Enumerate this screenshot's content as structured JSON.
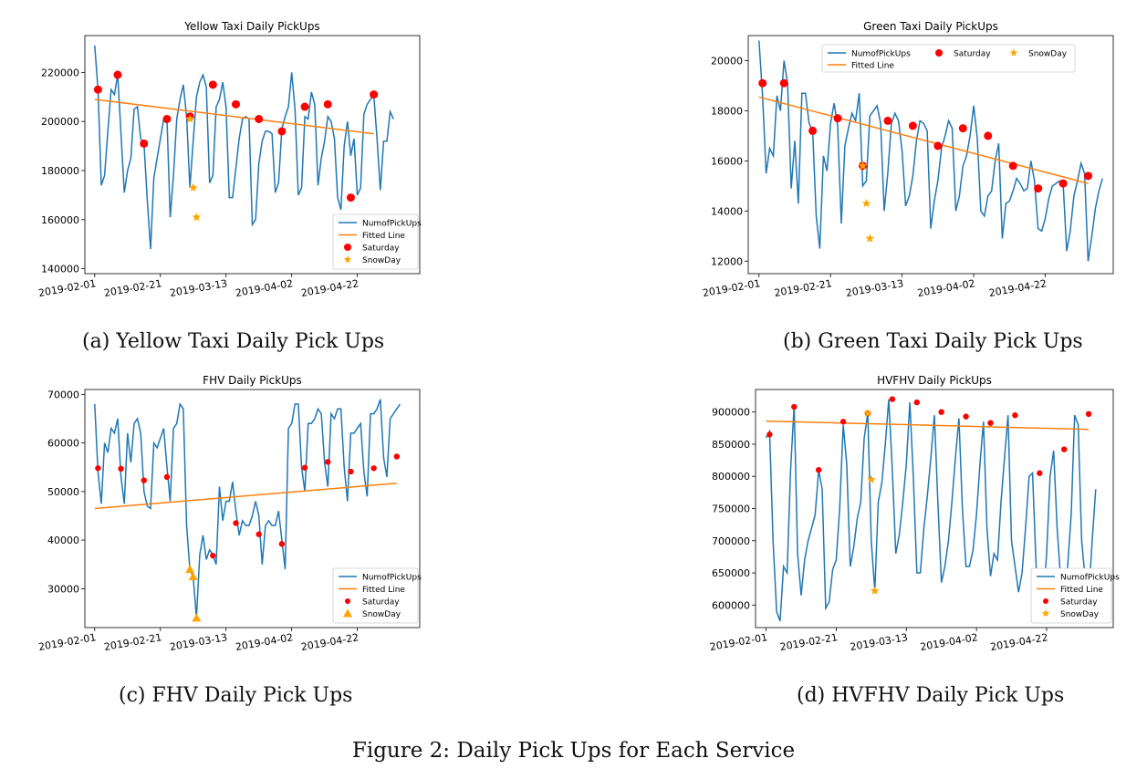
{
  "figure_caption": "Figure 2: Daily Pick Ups for Each Service",
  "captions": {
    "a": "(a) Yellow Taxi Daily Pick Ups",
    "b": "(b) Green Taxi Daily Pick Ups",
    "c": "(c) FHV Daily Pick Ups",
    "d": "(d) HVFHV Daily Pick Ups"
  },
  "colors": {
    "line": "#1f77b4",
    "fit": "#ff7f0e",
    "saturday": "#ff0000",
    "snow": "#ffa500"
  },
  "chart_data": [
    {
      "id": "a",
      "type": "line",
      "title": "Yellow Taxi Daily PickUps",
      "x_start": "2019-02-01",
      "x_tick_labels": [
        "2019-02-01",
        "2019-02-21",
        "2019-03-13",
        "2019-04-02",
        "2019-04-22"
      ],
      "x_tick_days": [
        0,
        20,
        40,
        60,
        80
      ],
      "y_ticks": [
        140000,
        160000,
        180000,
        200000,
        220000
      ],
      "ylim": [
        138000,
        235000
      ],
      "xlim": [
        -3,
        99
      ],
      "legend_position": "lower right",
      "legend": {
        "line": "NumofPickUps",
        "fit": "Fitted Line",
        "saturday": "Saturday",
        "snow": "SnowDay"
      },
      "series": [
        {
          "name": "NumofPickUps",
          "values": [
            231000,
            213000,
            174000,
            178000,
            196000,
            213000,
            211000,
            219000,
            195000,
            171000,
            180000,
            185000,
            205000,
            206000,
            193000,
            191000,
            168000,
            148000,
            177000,
            185000,
            193000,
            201000,
            201000,
            161000,
            178000,
            201000,
            209000,
            215000,
            202000,
            173000,
            192000,
            210000,
            216000,
            219000,
            214000,
            175000,
            178000,
            206000,
            209000,
            216000,
            206000,
            169000,
            169000,
            181000,
            193000,
            201000,
            202000,
            201000,
            158000,
            160000,
            183000,
            192000,
            196000,
            196000,
            195000,
            171000,
            175000,
            197000,
            202000,
            206000,
            220000,
            205000,
            170000,
            173000,
            202000,
            201000,
            212000,
            207000,
            174000,
            185000,
            192000,
            202000,
            200000,
            193000,
            169000,
            164000,
            190000,
            200000,
            186000,
            193000,
            170000,
            173000,
            203000,
            207000,
            209000,
            211000,
            193000,
            172000,
            192000,
            192000,
            204000,
            201000
          ]
        }
      ],
      "fitted_line": [
        209000,
        195000
      ],
      "saturday": {
        "x": [
          1,
          7,
          15,
          22,
          29,
          36,
          43,
          50,
          57,
          64,
          71,
          78,
          85
        ],
        "y": [
          213000,
          219000,
          191000,
          201000,
          202000,
          215000,
          207000,
          201000,
          196000,
          206000,
          207000,
          169000,
          211000
        ]
      },
      "snow": {
        "x": [
          29,
          30,
          31
        ],
        "y": [
          201000,
          173000,
          161000
        ]
      }
    },
    {
      "id": "b",
      "type": "line",
      "title": "Green Taxi Daily PickUps",
      "x_start": "2019-02-01",
      "x_tick_labels": [
        "2019-02-01",
        "2019-02-21",
        "2019-03-13",
        "2019-04-02",
        "2019-04-22"
      ],
      "x_tick_days": [
        0,
        20,
        40,
        60,
        80
      ],
      "y_ticks": [
        12000,
        14000,
        16000,
        18000,
        20000
      ],
      "ylim": [
        11500,
        21000
      ],
      "xlim": [
        -3,
        99
      ],
      "legend_position": "top",
      "legend": {
        "line": "NumofPickUps",
        "fit": "Fitted Line",
        "saturday": "Saturday",
        "snow": "SnowDay"
      },
      "series": [
        {
          "name": "NumofPickUps",
          "values": [
            20800,
            18600,
            15500,
            16500,
            16200,
            18600,
            18000,
            20000,
            19100,
            14900,
            16800,
            14300,
            18700,
            18700,
            17500,
            17200,
            13800,
            12500,
            16200,
            15600,
            17500,
            18300,
            17400,
            13500,
            16600,
            17300,
            17900,
            17600,
            18700,
            15000,
            15200,
            17800,
            18000,
            18200,
            17500,
            14000,
            15500,
            17500,
            17900,
            17600,
            16400,
            14200,
            14600,
            15400,
            16800,
            17600,
            17500,
            17200,
            13300,
            14400,
            15200,
            16500,
            17000,
            17600,
            17300,
            14000,
            14600,
            15800,
            16200,
            17000,
            18200,
            16900,
            14000,
            13800,
            14600,
            14800,
            16000,
            16700,
            12900,
            14300,
            14400,
            14800,
            15300,
            15100,
            14800,
            14900,
            16000,
            15200,
            13300,
            13200,
            13700,
            14500,
            15000,
            15100,
            15200,
            15100,
            12400,
            13200,
            14600,
            15200,
            15900,
            15500,
            12000,
            13000,
            14100,
            14800,
            15300
          ]
        }
      ],
      "fitted_line": [
        18550,
        15100
      ],
      "saturday": {
        "x": [
          1,
          7,
          15,
          22,
          29,
          36,
          43,
          50,
          57,
          64,
          71,
          78,
          85,
          92
        ],
        "y": [
          19100,
          19100,
          17200,
          17700,
          15800,
          17600,
          17400,
          16600,
          17300,
          17000,
          15800,
          14900,
          15100,
          15400
        ]
      },
      "snow": {
        "x": [
          29,
          30,
          31
        ],
        "y": [
          15800,
          14300,
          12900
        ]
      }
    },
    {
      "id": "c",
      "type": "line",
      "title": "FHV Daily PickUps",
      "x_start": "2019-02-01",
      "x_tick_labels": [
        "2019-02-01",
        "2019-02-21",
        "2019-03-13",
        "2019-04-02",
        "2019-04-22"
      ],
      "x_tick_days": [
        0,
        20,
        40,
        60,
        80
      ],
      "y_ticks": [
        30000,
        40000,
        50000,
        60000,
        70000
      ],
      "ylim": [
        22000,
        71000
      ],
      "xlim": [
        -3,
        99
      ],
      "legend_position": "lower right",
      "legend": {
        "line": "NumofPickUps",
        "fit": "Fitted Line",
        "saturday": "Saturday",
        "snow": "SnowDay"
      },
      "series": [
        {
          "name": "NumofPickUps",
          "values": [
            68000,
            54000,
            47500,
            60000,
            58000,
            63000,
            62000,
            65000,
            53000,
            47500,
            62000,
            56000,
            64000,
            65000,
            62000,
            50000,
            47000,
            46500,
            60000,
            59000,
            61000,
            63000,
            55000,
            48000,
            63000,
            64000,
            68000,
            67000,
            43000,
            34000,
            32500,
            24000,
            37000,
            41000,
            36000,
            38000,
            37000,
            35000,
            51000,
            44000,
            48000,
            48000,
            52000,
            46000,
            41000,
            44000,
            43000,
            43000,
            45000,
            48000,
            45000,
            35000,
            43000,
            44000,
            43000,
            43000,
            46000,
            40000,
            34000,
            63000,
            64000,
            68000,
            68000,
            55000,
            50000,
            64000,
            64000,
            65000,
            67000,
            66000,
            56000,
            51000,
            66000,
            65000,
            67000,
            67000,
            55000,
            48000,
            62000,
            62000,
            63000,
            64000,
            54000,
            49000,
            66000,
            66000,
            67000,
            69000,
            57000,
            53000,
            65000,
            66000,
            67000,
            68000
          ]
        }
      ],
      "fitted_line": [
        46500,
        51700
      ],
      "saturday": {
        "x": [
          1,
          8,
          15,
          22,
          36,
          43,
          50,
          57,
          64,
          71,
          78,
          85,
          92
        ],
        "y": [
          54800,
          54700,
          52300,
          53000,
          36800,
          43500,
          41200,
          39200,
          54900,
          56100,
          54100,
          54800,
          57200
        ]
      },
      "snow": {
        "x": [
          29,
          30,
          31
        ],
        "y": [
          34000,
          32500,
          24000
        ]
      }
    },
    {
      "id": "d",
      "type": "line",
      "title": "HVFHV Daily PickUps",
      "x_start": "2019-02-01",
      "x_tick_labels": [
        "2019-02-01",
        "2019-02-21",
        "2019-03-13",
        "2019-04-02",
        "2019-04-22"
      ],
      "x_tick_days": [
        0,
        20,
        40,
        60,
        80
      ],
      "y_ticks": [
        600000,
        650000,
        700000,
        750000,
        800000,
        850000,
        900000
      ],
      "ylim": [
        565000,
        935000
      ],
      "xlim": [
        -3,
        99
      ],
      "legend_position": "lower right",
      "legend": {
        "line": "NumofPickUps",
        "fit": "Fitted Line",
        "saturday": "Saturday",
        "snow": "SnowDay"
      },
      "series": [
        {
          "name": "NumofPickUps",
          "values": [
            860000,
            870000,
            700000,
            590000,
            575000,
            660000,
            650000,
            810000,
            910000,
            680000,
            615000,
            670000,
            700000,
            720000,
            740000,
            810000,
            780000,
            595000,
            605000,
            655000,
            670000,
            750000,
            880000,
            820000,
            660000,
            690000,
            735000,
            760000,
            860000,
            898000,
            700000,
            622000,
            760000,
            790000,
            850000,
            920000,
            810000,
            680000,
            710000,
            760000,
            820000,
            915000,
            800000,
            650000,
            650000,
            720000,
            770000,
            830000,
            895000,
            760000,
            635000,
            660000,
            700000,
            760000,
            830000,
            890000,
            750000,
            660000,
            660000,
            685000,
            740000,
            820000,
            885000,
            720000,
            645000,
            680000,
            670000,
            760000,
            830000,
            895000,
            700000,
            660000,
            620000,
            650000,
            720000,
            800000,
            805000,
            660000,
            610000,
            600000,
            680000,
            800000,
            840000,
            720000,
            640000,
            600000,
            660000,
            740000,
            895000,
            880000,
            700000,
            640000,
            610000,
            700000,
            780000
          ]
        }
      ],
      "fitted_line": [
        886000,
        873000
      ],
      "saturday": {
        "x": [
          1,
          8,
          15,
          22,
          29,
          36,
          43,
          50,
          57,
          64,
          71,
          78,
          85,
          92
        ],
        "y": [
          865000,
          908000,
          810000,
          885000,
          898000,
          920000,
          915000,
          900000,
          893000,
          883000,
          895000,
          805000,
          842000,
          897000
        ]
      },
      "snow": {
        "x": [
          29,
          30,
          31
        ],
        "y": [
          898000,
          795000,
          622000
        ]
      }
    }
  ]
}
